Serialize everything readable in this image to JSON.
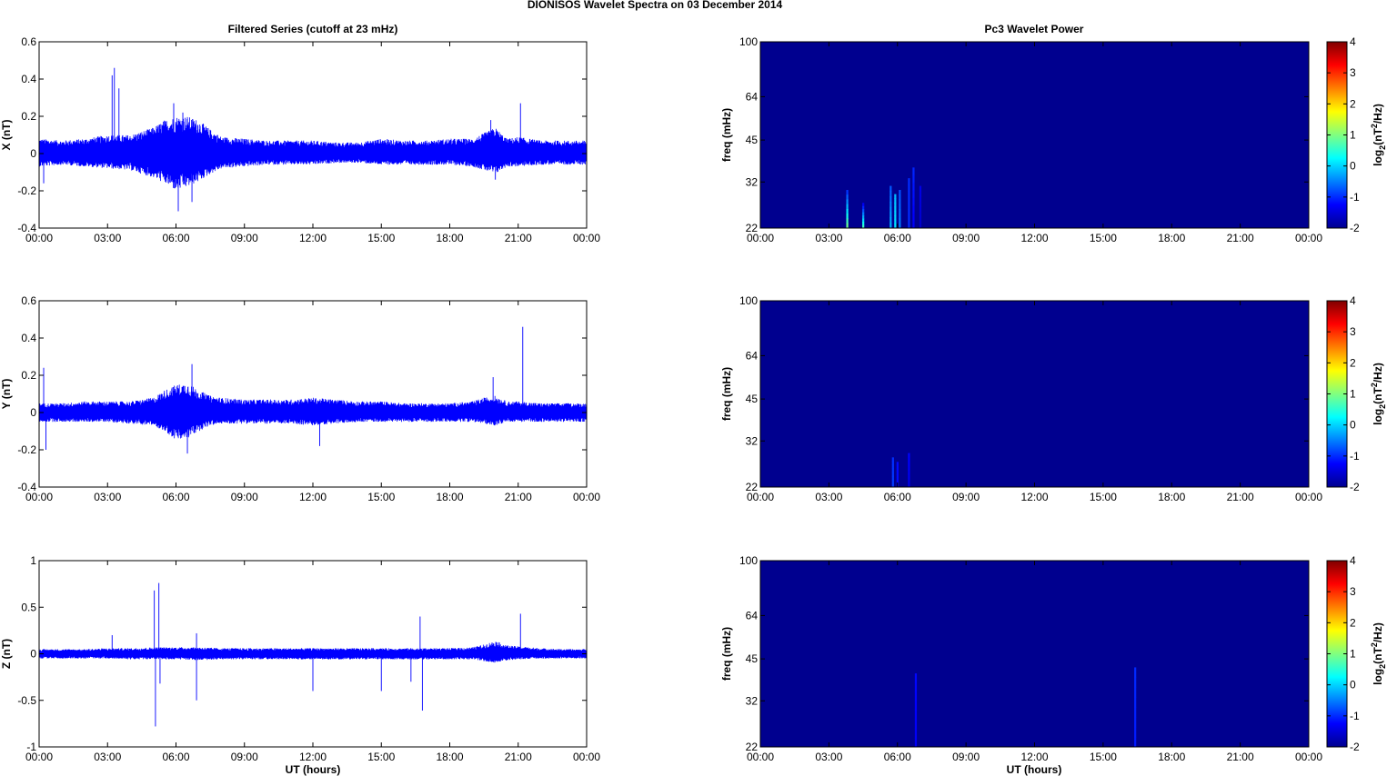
{
  "figure": {
    "title": "DIONISOS Wavelet Spectra on 03 December  2014",
    "left_title": "Filtered Series (cutoff at 23 mHz)",
    "right_title": "Pc3 Wavelet Power",
    "xlabel": "UT (hours)"
  },
  "colors": {
    "trace": "#0000ff",
    "power_background": "#00008f",
    "colormap_jet": [
      "#00008f",
      "#0000ff",
      "#0080ff",
      "#00ffff",
      "#80ff80",
      "#ffff00",
      "#ff8000",
      "#ff0000",
      "#800000"
    ]
  },
  "chart_data": [
    {
      "type": "line",
      "panel": "X",
      "ylabel": "X (nT)",
      "xlim": [
        0,
        24
      ],
      "xtick_labels": [
        "00:00",
        "03:00",
        "06:00",
        "09:00",
        "12:00",
        "15:00",
        "18:00",
        "21:00",
        "00:00"
      ],
      "ylim": [
        -0.4,
        0.6
      ],
      "yticks": [
        -0.4,
        -0.2,
        0,
        0.2,
        0.4,
        0.6
      ],
      "ytick_labels": [
        "-0.4",
        "-0.2",
        "0",
        "0.2",
        "0.4",
        "0.6"
      ],
      "envelope": {
        "hours": [
          0,
          1,
          2,
          3,
          4,
          5,
          5.5,
          6,
          6.5,
          7,
          7.5,
          8,
          9,
          10,
          11,
          12,
          13,
          14,
          15,
          16,
          17,
          18,
          19,
          19.5,
          20,
          20.5,
          21,
          22,
          23,
          24
        ],
        "upper": [
          0.08,
          0.07,
          0.08,
          0.1,
          0.1,
          0.14,
          0.18,
          0.2,
          0.2,
          0.18,
          0.13,
          0.09,
          0.08,
          0.07,
          0.07,
          0.07,
          0.06,
          0.06,
          0.08,
          0.07,
          0.07,
          0.08,
          0.08,
          0.11,
          0.14,
          0.08,
          0.09,
          0.07,
          0.07,
          0.07
        ],
        "lower": [
          -0.07,
          -0.06,
          -0.07,
          -0.08,
          -0.09,
          -0.13,
          -0.16,
          -0.2,
          -0.18,
          -0.15,
          -0.11,
          -0.08,
          -0.07,
          -0.06,
          -0.06,
          -0.06,
          -0.05,
          -0.05,
          -0.06,
          -0.06,
          -0.06,
          -0.06,
          -0.07,
          -0.09,
          -0.11,
          -0.07,
          -0.07,
          -0.06,
          -0.06,
          -0.06
        ]
      },
      "spikes": [
        [
          3.3,
          0.46
        ],
        [
          3.5,
          0.35
        ],
        [
          3.2,
          0.42
        ],
        [
          5.9,
          0.27
        ],
        [
          6.1,
          -0.31
        ],
        [
          6.7,
          -0.26
        ],
        [
          6.3,
          0.22
        ],
        [
          19.8,
          0.18
        ],
        [
          20.0,
          -0.14
        ],
        [
          21.1,
          0.27
        ],
        [
          0.2,
          -0.16
        ]
      ]
    },
    {
      "type": "line",
      "panel": "Y",
      "ylabel": "Y (nT)",
      "xlim": [
        0,
        24
      ],
      "xtick_labels": [
        "00:00",
        "03:00",
        "06:00",
        "09:00",
        "12:00",
        "15:00",
        "18:00",
        "21:00",
        "00:00"
      ],
      "ylim": [
        -0.4,
        0.6
      ],
      "yticks": [
        -0.4,
        -0.2,
        0,
        0.2,
        0.4,
        0.6
      ],
      "ytick_labels": [
        "-0.4",
        "-0.2",
        "0",
        "0.2",
        "0.4",
        "0.6"
      ],
      "envelope": {
        "hours": [
          0,
          1,
          2,
          3,
          4,
          5,
          5.5,
          6,
          6.5,
          7,
          7.5,
          8,
          9,
          10,
          11,
          12,
          13,
          14,
          15,
          16,
          17,
          18,
          19,
          19.5,
          20,
          20.5,
          21,
          22,
          23,
          24
        ],
        "upper": [
          0.05,
          0.05,
          0.06,
          0.06,
          0.06,
          0.08,
          0.12,
          0.15,
          0.16,
          0.12,
          0.09,
          0.08,
          0.07,
          0.07,
          0.07,
          0.08,
          0.07,
          0.06,
          0.06,
          0.05,
          0.05,
          0.05,
          0.06,
          0.08,
          0.09,
          0.06,
          0.06,
          0.05,
          0.05,
          0.05
        ],
        "lower": [
          -0.05,
          -0.05,
          -0.05,
          -0.05,
          -0.06,
          -0.07,
          -0.1,
          -0.15,
          -0.14,
          -0.1,
          -0.07,
          -0.06,
          -0.06,
          -0.06,
          -0.06,
          -0.07,
          -0.06,
          -0.05,
          -0.05,
          -0.05,
          -0.05,
          -0.05,
          -0.05,
          -0.06,
          -0.07,
          -0.05,
          -0.05,
          -0.05,
          -0.05,
          -0.05
        ]
      },
      "spikes": [
        [
          21.2,
          0.46
        ],
        [
          6.7,
          0.26
        ],
        [
          6.5,
          -0.22
        ],
        [
          12.3,
          -0.18
        ],
        [
          19.9,
          0.19
        ],
        [
          0.2,
          0.24
        ],
        [
          0.3,
          -0.2
        ]
      ]
    },
    {
      "type": "line",
      "panel": "Z",
      "ylabel": "Z (nT)",
      "xlim": [
        0,
        24
      ],
      "xtick_labels": [
        "00:00",
        "03:00",
        "06:00",
        "09:00",
        "12:00",
        "15:00",
        "18:00",
        "21:00",
        "00:00"
      ],
      "ylim": [
        -1,
        1
      ],
      "yticks": [
        -1,
        -0.5,
        0,
        0.5,
        1
      ],
      "ytick_labels": [
        "-1",
        "-0.5",
        "0",
        "0.5",
        "1"
      ],
      "envelope": {
        "hours": [
          0,
          1,
          2,
          3,
          4,
          5,
          6,
          7,
          8,
          9,
          10,
          11,
          12,
          13,
          14,
          15,
          16,
          17,
          18,
          19,
          19.5,
          20,
          20.5,
          21,
          22,
          23,
          24
        ],
        "upper": [
          0.05,
          0.05,
          0.05,
          0.06,
          0.06,
          0.07,
          0.07,
          0.07,
          0.06,
          0.06,
          0.06,
          0.06,
          0.06,
          0.06,
          0.06,
          0.06,
          0.06,
          0.06,
          0.06,
          0.07,
          0.1,
          0.14,
          0.09,
          0.08,
          0.06,
          0.05,
          0.05
        ],
        "lower": [
          -0.05,
          -0.05,
          -0.05,
          -0.05,
          -0.06,
          -0.06,
          -0.06,
          -0.07,
          -0.06,
          -0.06,
          -0.06,
          -0.06,
          -0.06,
          -0.06,
          -0.06,
          -0.06,
          -0.06,
          -0.06,
          -0.06,
          -0.06,
          -0.08,
          -0.1,
          -0.07,
          -0.06,
          -0.05,
          -0.05,
          -0.05
        ]
      },
      "spikes": [
        [
          5.05,
          0.68
        ],
        [
          5.25,
          0.76
        ],
        [
          5.1,
          -0.78
        ],
        [
          5.3,
          -0.32
        ],
        [
          6.9,
          -0.5
        ],
        [
          6.9,
          0.22
        ],
        [
          12.0,
          -0.4
        ],
        [
          15.0,
          -0.4
        ],
        [
          16.7,
          0.4
        ],
        [
          16.8,
          -0.61
        ],
        [
          16.3,
          -0.3
        ],
        [
          21.1,
          0.43
        ],
        [
          3.2,
          0.2
        ]
      ]
    },
    {
      "type": "heatmap",
      "panel": "X",
      "ylabel": "freq (mHz)",
      "colorbar_label": "log2(nT^2/Hz)",
      "xlim": [
        0,
        24
      ],
      "xtick_labels": [
        "00:00",
        "03:00",
        "06:00",
        "09:00",
        "12:00",
        "15:00",
        "18:00",
        "21:00",
        "00:00"
      ],
      "y_scale": "log",
      "ylim": [
        22,
        100
      ],
      "yticks": [
        22,
        32,
        45,
        64,
        100
      ],
      "ytick_labels": [
        "22",
        "32",
        "45",
        "64",
        "100"
      ],
      "clim": [
        -2,
        4
      ],
      "cticks": [
        "-2",
        "-1",
        "0",
        "1",
        "2",
        "3",
        "4"
      ],
      "background_level": -2,
      "events": [
        [
          3.8,
          0.9,
          30,
          -1.2
        ],
        [
          4.5,
          0.6,
          27,
          -1.6
        ],
        [
          5.7,
          -0.2,
          31,
          -0.8
        ],
        [
          5.9,
          0.1,
          29,
          -0.2
        ],
        [
          6.1,
          -0.5,
          30,
          -0.8
        ],
        [
          6.5,
          -1.0,
          33,
          -1.0
        ],
        [
          6.7,
          -1.3,
          36,
          -1.0
        ],
        [
          7.0,
          -1.6,
          31,
          -1.4
        ]
      ]
    },
    {
      "type": "heatmap",
      "panel": "Y",
      "ylabel": "freq (mHz)",
      "colorbar_label": "log2(nT^2/Hz)",
      "xlim": [
        0,
        24
      ],
      "xtick_labels": [
        "00:00",
        "03:00",
        "06:00",
        "09:00",
        "12:00",
        "15:00",
        "18:00",
        "21:00",
        "00:00"
      ],
      "y_scale": "log",
      "ylim": [
        22,
        100
      ],
      "yticks": [
        22,
        32,
        45,
        64,
        100
      ],
      "ytick_labels": [
        "22",
        "32",
        "45",
        "64",
        "100"
      ],
      "clim": [
        -2,
        4
      ],
      "cticks": [
        "-2",
        "-1",
        "0",
        "1",
        "2",
        "3",
        "4"
      ],
      "background_level": -2,
      "events": [
        [
          5.8,
          -0.9,
          28,
          -1.0
        ],
        [
          6.0,
          -1.2,
          27,
          -1.2
        ],
        [
          6.5,
          -1.4,
          29,
          -1.2
        ]
      ]
    },
    {
      "type": "heatmap",
      "panel": "Z",
      "ylabel": "freq (mHz)",
      "colorbar_label": "log2(nT^2/Hz)",
      "xlim": [
        0,
        24
      ],
      "xtick_labels": [
        "00:00",
        "03:00",
        "06:00",
        "09:00",
        "12:00",
        "15:00",
        "18:00",
        "21:00",
        "00:00"
      ],
      "y_scale": "log",
      "ylim": [
        22,
        100
      ],
      "yticks": [
        22,
        32,
        45,
        64,
        100
      ],
      "ytick_labels": [
        "22",
        "32",
        "45",
        "64",
        "100"
      ],
      "clim": [
        -2,
        4
      ],
      "cticks": [
        "-2",
        "-1",
        "0",
        "1",
        "2",
        "3",
        "4"
      ],
      "background_level": -2,
      "events": [
        [
          6.8,
          -1.3,
          40,
          -1.2
        ],
        [
          16.4,
          -1.1,
          42,
          -1.0
        ]
      ]
    }
  ]
}
